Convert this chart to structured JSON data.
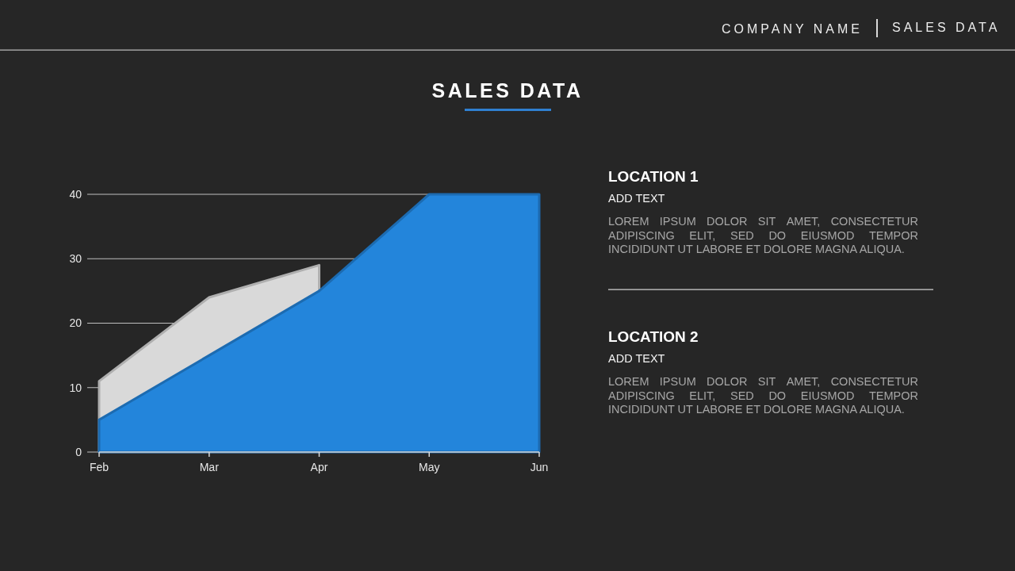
{
  "chart_data": [
    {
      "type": "area",
      "title": "SALES DATA",
      "annotations": [
        "COMPANY NAME",
        "SALES DATA"
      ],
      "categories": [
        "Feb",
        "Mar",
        "Apr",
        "May",
        "Jun"
      ],
      "series": [
        {
          "color": "#d9d9d9",
          "values": [
            11,
            24,
            29,
            null,
            null
          ]
        },
        {
          "color": "#2385db",
          "values": [
            5,
            15,
            25,
            40,
            40
          ]
        }
      ],
      "ylim": [
        0,
        40
      ],
      "yticks": [
        0,
        10,
        20,
        30,
        40
      ],
      "grid": "y"
    },
    {
      "type": "other",
      "title": "LOCATION 1",
      "subtitle": "ADD TEXT",
      "annotations": [
        "LOREM IPSUM DOLOR SIT AMET, CONSECTETUR ADIPISCING ELIT, SED DO EIUSMOD TEMPOR INCIDIDUNT UT LABORE ET DOLORE MAGNA ALIQUA."
      ]
    },
    {
      "type": "other",
      "title": "LOCATION 2",
      "subtitle": "ADD TEXT",
      "annotations": [
        "LOREM IPSUM DOLOR SIT AMET, CONSECTETUR ADIPISCING ELIT, SED DO EIUSMOD TEMPOR INCIDIDUNT UT LABORE ET DOLORE MAGNA ALIQUA."
      ]
    }
  ]
}
